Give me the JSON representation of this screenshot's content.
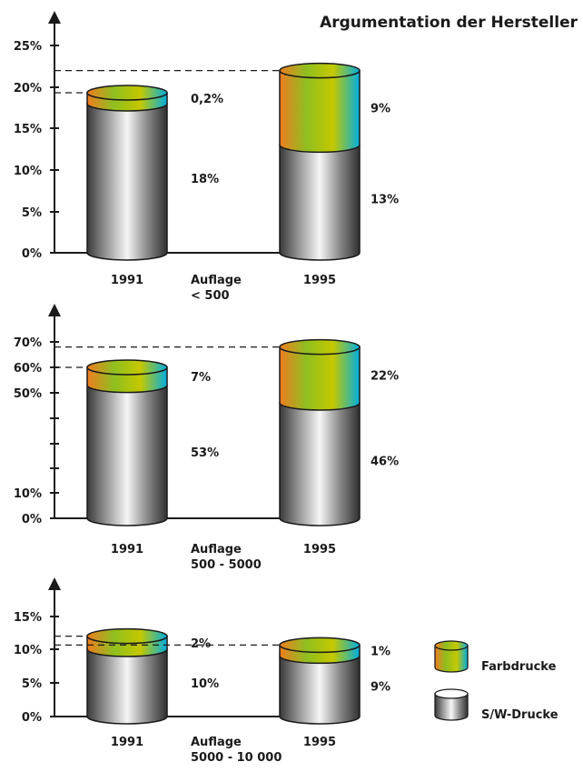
{
  "title": "Argumentation der Hersteller",
  "legend": [
    {
      "key": "color",
      "label": "Farbdrucke"
    },
    {
      "key": "bw",
      "label": "S/W-Drucke"
    }
  ],
  "colors": {
    "color_gradient": [
      "#ee7d20",
      "#8fbf20",
      "#c5c800",
      "#00aee0"
    ],
    "bw_gradient": [
      "#3a3a3a",
      "#9a9a9a",
      "#f6f6f6",
      "#8a8a8a",
      "#303030"
    ],
    "axis": "#1a1a1a"
  },
  "chart_data": [
    {
      "type": "bar",
      "stacked": true,
      "category_label": "Auflage\n< 500",
      "categories": [
        "1991",
        "1995"
      ],
      "series": [
        {
          "name": "S/W-Drucke",
          "values": [
            18,
            13
          ],
          "labels": [
            "18%",
            "13%"
          ]
        },
        {
          "name": "Farbdrucke",
          "values": [
            0.2,
            9
          ],
          "labels": [
            "0,2%",
            "9%"
          ]
        }
      ],
      "yticks": [
        0,
        5,
        10,
        15,
        20,
        25
      ],
      "ytick_labels": [
        "0%",
        "5%",
        "10%",
        "15%",
        "20%",
        "25%"
      ],
      "ylim": [
        0,
        25
      ]
    },
    {
      "type": "bar",
      "stacked": true,
      "category_label": "Auflage\n500 - 5000",
      "categories": [
        "1991",
        "1995"
      ],
      "series": [
        {
          "name": "S/W-Drucke",
          "values": [
            53,
            46
          ],
          "labels": [
            "53%",
            "46%"
          ]
        },
        {
          "name": "Farbdrucke",
          "values": [
            7,
            22
          ],
          "labels": [
            "7%",
            "22%"
          ]
        }
      ],
      "yticks": [
        0,
        10,
        50,
        60,
        70
      ],
      "ytick_labels": [
        "0%",
        "10%",
        "50%",
        "60%",
        "70%"
      ],
      "axis_break": true,
      "ylim": [
        0,
        70
      ]
    },
    {
      "type": "bar",
      "stacked": true,
      "category_label": "Auflage\n5000 - 10 000",
      "categories": [
        "1991",
        "1995"
      ],
      "series": [
        {
          "name": "S/W-Drucke",
          "values": [
            10,
            9
          ],
          "labels": [
            "10%",
            "9%"
          ]
        },
        {
          "name": "Farbdrucke",
          "values": [
            2,
            1
          ],
          "labels": [
            "2%",
            "1%"
          ]
        }
      ],
      "yticks": [
        0,
        5,
        10,
        15
      ],
      "ytick_labels": [
        "0%",
        "5%",
        "10%",
        "15%"
      ],
      "ylim": [
        0,
        15
      ]
    }
  ]
}
